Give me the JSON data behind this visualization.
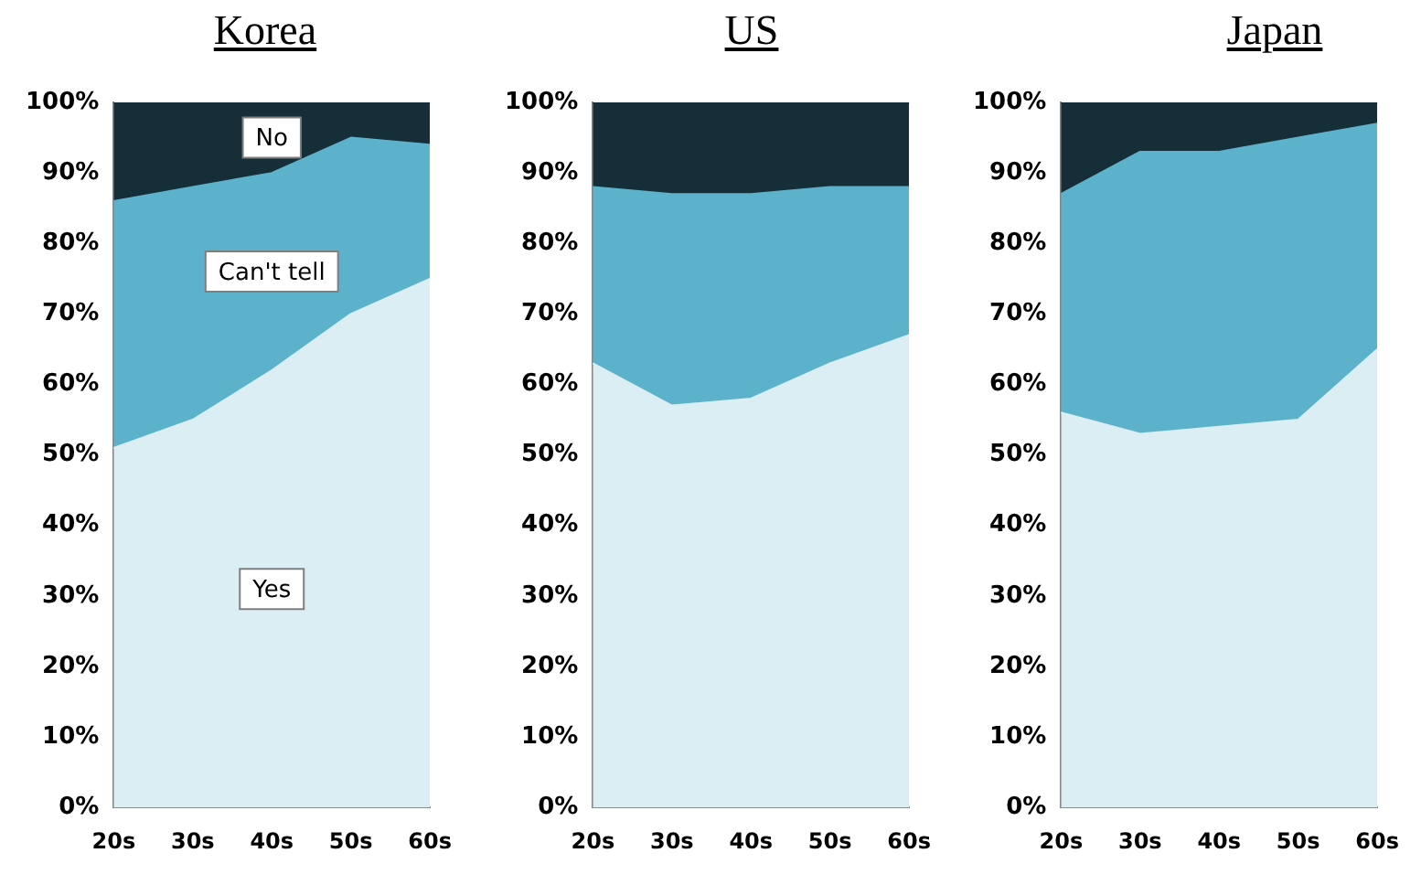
{
  "chart_data": [
    {
      "type": "area",
      "title": "Korea",
      "stacked": true,
      "legend": false,
      "grid": false,
      "categories": [
        "20s",
        "30s",
        "40s",
        "50s",
        "60s"
      ],
      "ylim": [
        0,
        100
      ],
      "yticks": [
        {
          "value": 0,
          "label": "0%"
        },
        {
          "value": 10,
          "label": "10%"
        },
        {
          "value": 20,
          "label": "20%"
        },
        {
          "value": 30,
          "label": "30%"
        },
        {
          "value": 40,
          "label": "40%"
        },
        {
          "value": 50,
          "label": "50%"
        },
        {
          "value": 60,
          "label": "60%"
        },
        {
          "value": 70,
          "label": "70%"
        },
        {
          "value": 80,
          "label": "80%"
        },
        {
          "value": 90,
          "label": "90%"
        },
        {
          "value": 100,
          "label": "100%"
        }
      ],
      "series": [
        {
          "name": "Yes",
          "color": "#daeef3",
          "values": [
            51,
            55,
            62,
            70,
            75
          ]
        },
        {
          "name": "Can't tell",
          "color": "#5db2cb",
          "values": [
            35,
            33,
            28,
            25,
            19
          ]
        },
        {
          "name": "No",
          "color": "#152e37",
          "values": [
            14,
            12,
            10,
            5,
            6
          ]
        }
      ]
    },
    {
      "type": "area",
      "title": "US",
      "stacked": true,
      "legend": false,
      "grid": false,
      "categories": [
        "20s",
        "30s",
        "40s",
        "50s",
        "60s"
      ],
      "ylim": [
        0,
        100
      ],
      "yticks": [
        {
          "value": 0,
          "label": "0%"
        },
        {
          "value": 10,
          "label": "10%"
        },
        {
          "value": 20,
          "label": "20%"
        },
        {
          "value": 30,
          "label": "30%"
        },
        {
          "value": 40,
          "label": "40%"
        },
        {
          "value": 50,
          "label": "50%"
        },
        {
          "value": 60,
          "label": "60%"
        },
        {
          "value": 70,
          "label": "70%"
        },
        {
          "value": 80,
          "label": "80%"
        },
        {
          "value": 90,
          "label": "90%"
        },
        {
          "value": 100,
          "label": "100%"
        }
      ],
      "series": [
        {
          "color": "#daeef3",
          "values": [
            63,
            57,
            58,
            63,
            67
          ]
        },
        {
          "color": "#5db2cb",
          "values": [
            25,
            30,
            29,
            25,
            21
          ]
        },
        {
          "color": "#152e37",
          "values": [
            12,
            13,
            13,
            12,
            12
          ]
        }
      ]
    },
    {
      "type": "area",
      "title": "Japan",
      "stacked": true,
      "legend": false,
      "grid": false,
      "categories": [
        "20s",
        "30s",
        "40s",
        "50s",
        "60s"
      ],
      "ylim": [
        0,
        100
      ],
      "yticks": [
        {
          "value": 0,
          "label": "0%"
        },
        {
          "value": 10,
          "label": "10%"
        },
        {
          "value": 20,
          "label": "20%"
        },
        {
          "value": 30,
          "label": "30%"
        },
        {
          "value": 40,
          "label": "40%"
        },
        {
          "value": 50,
          "label": "50%"
        },
        {
          "value": 60,
          "label": "60%"
        },
        {
          "value": 70,
          "label": "70%"
        },
        {
          "value": 80,
          "label": "80%"
        },
        {
          "value": 90,
          "label": "90%"
        },
        {
          "value": 100,
          "label": "100%"
        }
      ],
      "series": [
        {
          "color": "#daeef3",
          "values": [
            56,
            53,
            54,
            55,
            65
          ]
        },
        {
          "color": "#5db2cb",
          "values": [
            31,
            40,
            39,
            40,
            32
          ]
        },
        {
          "color": "#152e37",
          "values": [
            13,
            7,
            7,
            5,
            3
          ]
        }
      ]
    }
  ]
}
